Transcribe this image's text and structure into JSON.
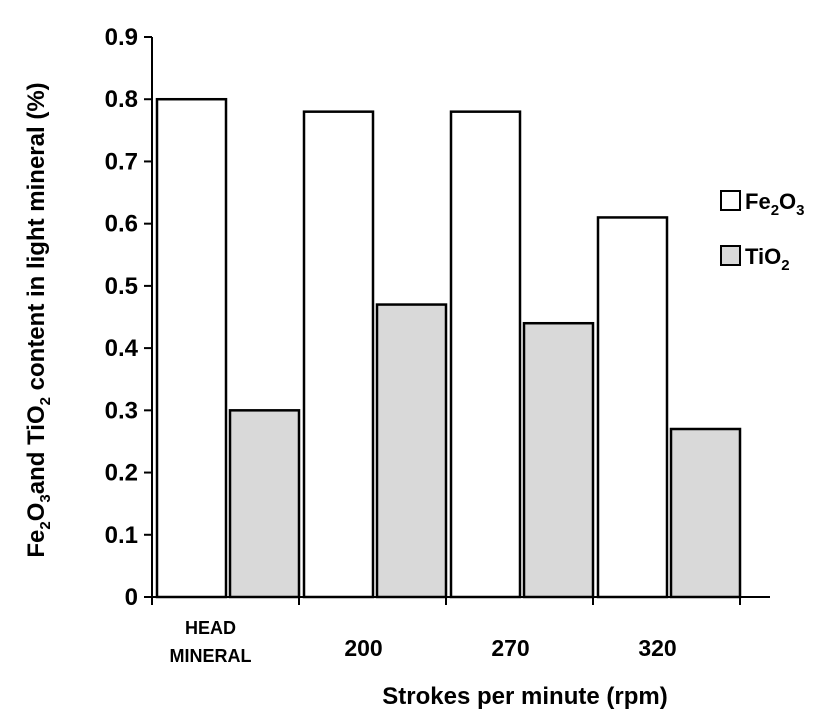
{
  "chart_data": {
    "type": "bar",
    "categories": [
      "HEAD MINERAL",
      "200",
      "270",
      "320"
    ],
    "category_lines": [
      [
        "HEAD",
        "MINERAL"
      ],
      [
        "200"
      ],
      [
        "270"
      ],
      [
        "320"
      ]
    ],
    "series": [
      {
        "name": "Fe2O3",
        "name_parts": [
          "Fe",
          "2",
          "O",
          "3"
        ],
        "values": [
          0.8,
          0.78,
          0.78,
          0.61
        ],
        "color": "#ffffff"
      },
      {
        "name": "TiO2",
        "name_parts": [
          "TiO",
          "2"
        ],
        "values": [
          0.3,
          0.47,
          0.44,
          0.27
        ],
        "color": "#d9d9d9"
      }
    ],
    "ylim": [
      0,
      0.9
    ],
    "yticks": [
      "0",
      "0.1",
      "0.2",
      "0.3",
      "0.4",
      "0.5",
      "0.6",
      "0.7",
      "0.8",
      "0.9"
    ],
    "xlabel": "Strokes per minute (rpm)",
    "ylabel": "Fe2O3 and TiO2 content in light mineral (%)",
    "ylabel_parts": [
      "Fe",
      "2",
      "O",
      "3",
      "and  TiO",
      "2",
      " content in light mineral (%)"
    ],
    "grid": false,
    "legend_position": "right",
    "bar_edge_color": "#000000"
  }
}
